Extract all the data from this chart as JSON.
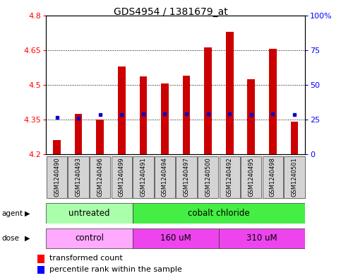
{
  "title": "GDS4954 / 1381679_at",
  "samples": [
    "GSM1240490",
    "GSM1240493",
    "GSM1240496",
    "GSM1240499",
    "GSM1240491",
    "GSM1240494",
    "GSM1240497",
    "GSM1240500",
    "GSM1240492",
    "GSM1240495",
    "GSM1240498",
    "GSM1240501"
  ],
  "transformed_counts": [
    4.26,
    4.375,
    4.35,
    4.58,
    4.535,
    4.505,
    4.54,
    4.66,
    4.73,
    4.525,
    4.655,
    4.34
  ],
  "percentile_ranks": [
    4.36,
    4.355,
    4.37,
    4.37,
    4.375,
    4.375,
    4.375,
    4.375,
    4.375,
    4.37,
    4.375,
    4.37
  ],
  "ymin": 4.2,
  "ymax": 4.8,
  "yticks": [
    4.2,
    4.35,
    4.5,
    4.65,
    4.8
  ],
  "ytick_labels": [
    "4.2",
    "4.35",
    "4.5",
    "4.65",
    "4.8"
  ],
  "right_ytick_labels": [
    "0",
    "25",
    "50",
    "75",
    "100%"
  ],
  "bar_color": "#cc0000",
  "marker_color": "#0000cc",
  "bar_bottom": 4.2,
  "agent_groups": [
    {
      "label": "untreated",
      "start": 0,
      "end": 4,
      "color": "#aaffaa"
    },
    {
      "label": "cobalt chloride",
      "start": 4,
      "end": 12,
      "color": "#44ee44"
    }
  ],
  "dose_groups": [
    {
      "label": "control",
      "start": 0,
      "end": 4,
      "color": "#ffaaff"
    },
    {
      "label": "160 uM",
      "start": 4,
      "end": 8,
      "color": "#ee44ee"
    },
    {
      "label": "310 uM",
      "start": 8,
      "end": 12,
      "color": "#ee44ee"
    }
  ],
  "legend_red_label": "transformed count",
  "legend_blue_label": "percentile rank within the sample",
  "title_fontsize": 10,
  "tick_fontsize": 8,
  "sample_fontsize": 6,
  "row_fontsize": 8.5,
  "legend_fontsize": 8
}
